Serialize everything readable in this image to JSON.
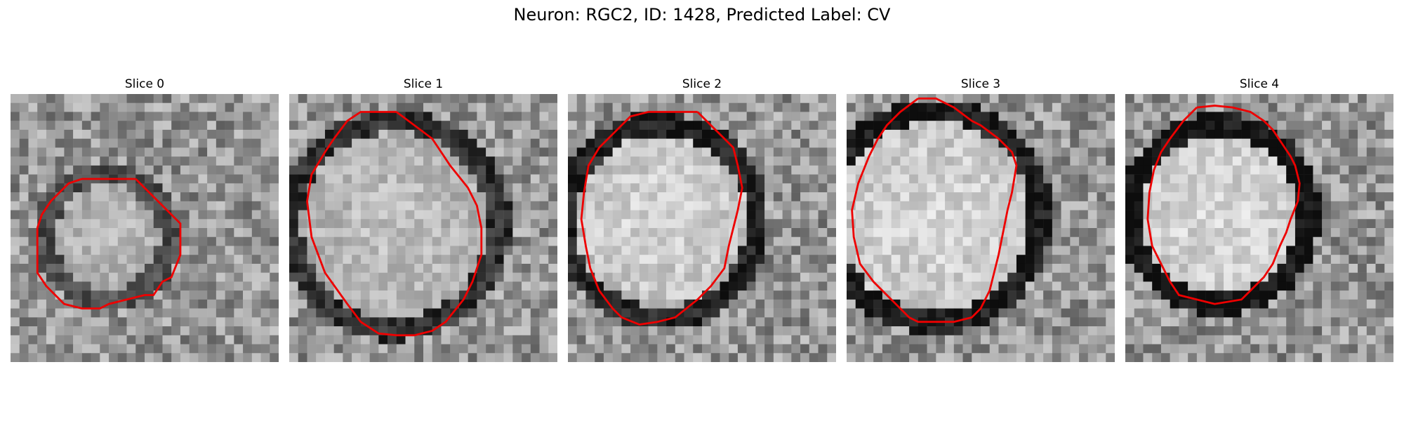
{
  "figure": {
    "title": "Neuron: RGC2, ID: 1428, Predicted Label: CV",
    "contour_color": "#ee0000"
  },
  "panels": [
    {
      "label": "Slice 0",
      "contour": [
        [
          14,
          9.5
        ],
        [
          15,
          10.5
        ],
        [
          17,
          12.5
        ],
        [
          19,
          14.5
        ],
        [
          19,
          18
        ],
        [
          18,
          20.5
        ],
        [
          17,
          21
        ],
        [
          16,
          22.5
        ],
        [
          15,
          22.5
        ],
        [
          13,
          23
        ],
        [
          11,
          23.5
        ],
        [
          10,
          24
        ],
        [
          8,
          24
        ],
        [
          6,
          23.5
        ],
        [
          5,
          22.5
        ],
        [
          4,
          21.5
        ],
        [
          3,
          20
        ],
        [
          3,
          17
        ],
        [
          3,
          15
        ],
        [
          3.5,
          13.5
        ],
        [
          4.5,
          12
        ],
        [
          5.5,
          11
        ],
        [
          6.5,
          10
        ],
        [
          8,
          9.5
        ],
        [
          10,
          9.5
        ],
        [
          12,
          9.5
        ],
        [
          14,
          9.5
        ]
      ],
      "membrane": {
        "cx": 10.8,
        "cy": 16,
        "r": 7.0,
        "strength": 0.28
      },
      "interior_brightness": 0.74
    },
    {
      "label": "Slice 1",
      "contour": [
        [
          12,
          2
        ],
        [
          14,
          3.5
        ],
        [
          16,
          5
        ],
        [
          17,
          6.5
        ],
        [
          18,
          8
        ],
        [
          20,
          10.5
        ],
        [
          21,
          12.5
        ],
        [
          21.5,
          15
        ],
        [
          21.5,
          18
        ],
        [
          20.5,
          21
        ],
        [
          19.5,
          23
        ],
        [
          17.5,
          25.5
        ],
        [
          16,
          26.5
        ],
        [
          14,
          27
        ],
        [
          12,
          27
        ],
        [
          10,
          26.8
        ],
        [
          8,
          25.5
        ],
        [
          6.5,
          23.5
        ],
        [
          4,
          20
        ],
        [
          2.5,
          16
        ],
        [
          2,
          12
        ],
        [
          2.5,
          9
        ],
        [
          4,
          6.5
        ],
        [
          5,
          5
        ],
        [
          6.5,
          3
        ],
        [
          8,
          2
        ],
        [
          10,
          2
        ],
        [
          12,
          2
        ]
      ],
      "membrane": {
        "cx": 11.8,
        "cy": 14.7,
        "r": 11.6,
        "strength": 0.42
      },
      "interior_brightness": 0.76
    },
    {
      "label": "Slice 2",
      "contour": [
        [
          14.5,
          2
        ],
        [
          15.5,
          3
        ],
        [
          17,
          4.5
        ],
        [
          18.5,
          6
        ],
        [
          19,
          8
        ],
        [
          19.5,
          10.5
        ],
        [
          19,
          13
        ],
        [
          18.5,
          15
        ],
        [
          18,
          17
        ],
        [
          17.5,
          19.5
        ],
        [
          16,
          21.5
        ],
        [
          14.5,
          23
        ],
        [
          12,
          25
        ],
        [
          10,
          25.5
        ],
        [
          8,
          25.8
        ],
        [
          6,
          25
        ],
        [
          5,
          24
        ],
        [
          3.5,
          22
        ],
        [
          2.5,
          19.5
        ],
        [
          2,
          17
        ],
        [
          1.5,
          14
        ],
        [
          1.8,
          11
        ],
        [
          2.3,
          8
        ],
        [
          3.5,
          6
        ],
        [
          5.5,
          4
        ],
        [
          7,
          2.5
        ],
        [
          9,
          2
        ],
        [
          12,
          2
        ],
        [
          14.5,
          2
        ]
      ],
      "membrane": {
        "cx": 10.4,
        "cy": 14.2,
        "r": 10.8,
        "strength": 0.55
      },
      "interior_brightness": 0.84
    },
    {
      "label": "Slice 3",
      "contour": [
        [
          8,
          0.5
        ],
        [
          10,
          0.5
        ],
        [
          12,
          1.5
        ],
        [
          14,
          3
        ],
        [
          15,
          3.5
        ],
        [
          17,
          5
        ],
        [
          18.5,
          6.5
        ],
        [
          19,
          8
        ],
        [
          18.5,
          11
        ],
        [
          18,
          13
        ],
        [
          17.5,
          15.5
        ],
        [
          17,
          18
        ],
        [
          16.5,
          20
        ],
        [
          16,
          22
        ],
        [
          15,
          24
        ],
        [
          14,
          25
        ],
        [
          12,
          25.5
        ],
        [
          10,
          25.5
        ],
        [
          8,
          25.5
        ],
        [
          7,
          25
        ],
        [
          5,
          23
        ],
        [
          3,
          21
        ],
        [
          1.5,
          19
        ],
        [
          0.8,
          16
        ],
        [
          0.6,
          13
        ],
        [
          1.3,
          10
        ],
        [
          2.5,
          7
        ],
        [
          3.5,
          5
        ],
        [
          4.5,
          3.5
        ],
        [
          6,
          2
        ],
        [
          8,
          0.5
        ]
      ],
      "membrane": {
        "cx": 9.8,
        "cy": 13.7,
        "r": 11.9,
        "strength": 0.6
      },
      "interior_brightness": 0.85
    },
    {
      "label": "Slice 4",
      "contour": [
        [
          8,
          1.5
        ],
        [
          10,
          1.3
        ],
        [
          12,
          1.5
        ],
        [
          14,
          2
        ],
        [
          15.5,
          3
        ],
        [
          16.5,
          4
        ],
        [
          17.5,
          5.5
        ],
        [
          18.5,
          7
        ],
        [
          19,
          8
        ],
        [
          19.5,
          10
        ],
        [
          19.3,
          12
        ],
        [
          18.5,
          14
        ],
        [
          18,
          15.5
        ],
        [
          17.3,
          17
        ],
        [
          16.5,
          19
        ],
        [
          15.5,
          20.5
        ],
        [
          14,
          22
        ],
        [
          13,
          23
        ],
        [
          10,
          23.5
        ],
        [
          8,
          23
        ],
        [
          6,
          22.5
        ],
        [
          5,
          21
        ],
        [
          4,
          19
        ],
        [
          3,
          17
        ],
        [
          2.5,
          14
        ],
        [
          2.7,
          11
        ],
        [
          3.2,
          8.5
        ],
        [
          4,
          6.5
        ],
        [
          5,
          5
        ],
        [
          6.5,
          3
        ],
        [
          8,
          1.5
        ]
      ],
      "membrane": {
        "cx": 10.6,
        "cy": 13.5,
        "r": 10.0,
        "strength": 0.65
      },
      "interior_brightness": 0.86
    }
  ]
}
